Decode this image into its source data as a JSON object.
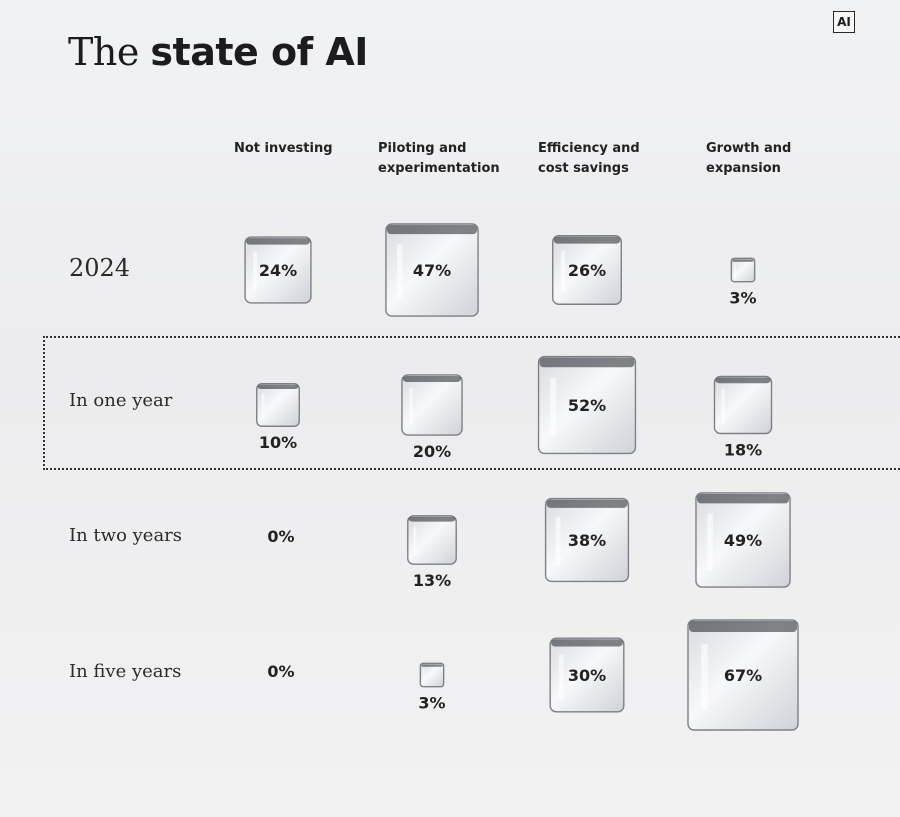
{
  "title": {
    "light": "The",
    "bold": "state of AI"
  },
  "logo": "AI",
  "chart_data": {
    "type": "table",
    "title": "The state of AI",
    "columns": [
      "Not investing",
      "Piloting and\nexperimentation",
      "Efficiency and\ncost savings",
      "Growth and\nexpansion"
    ],
    "rows": [
      "2024",
      "In one year",
      "In two years",
      "In five years"
    ],
    "highlighted_row": "In one year",
    "values": [
      [
        24,
        47,
        26,
        3
      ],
      [
        10,
        20,
        52,
        18
      ],
      [
        0,
        13,
        38,
        49
      ],
      [
        0,
        3,
        30,
        67
      ]
    ],
    "labels": [
      [
        "24%",
        "47%",
        "26%",
        "3%"
      ],
      [
        "10%",
        "20%",
        "52%",
        "18%"
      ],
      [
        "0%",
        "13%",
        "38%",
        "49%"
      ],
      [
        "0%",
        "3%",
        "30%",
        "67%"
      ]
    ]
  }
}
